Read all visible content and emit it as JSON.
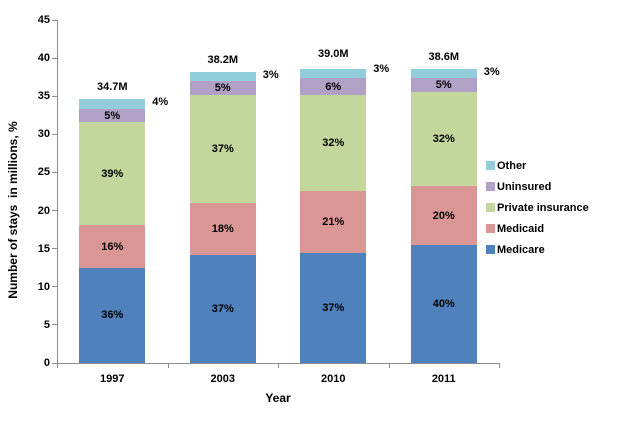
{
  "chart_data": {
    "type": "stacked-bar",
    "title": "",
    "xlabel": "Year",
    "ylabel": "Number of stays  in millions, %",
    "categories": [
      "1997",
      "2003",
      "2010",
      "2011"
    ],
    "totals_labels": [
      "34.7M",
      "38.2M",
      "39.0M",
      "38.6M"
    ],
    "totals_values": [
      34.7,
      38.2,
      39.0,
      38.6
    ],
    "ylim": [
      0,
      45
    ],
    "ytick_labels": [
      "0",
      "5",
      "10",
      "15",
      "20",
      "25",
      "30",
      "35",
      "40",
      "45"
    ],
    "ytick_values": [
      0,
      5,
      10,
      15,
      20,
      25,
      30,
      35,
      40,
      45
    ],
    "grid": false,
    "legend_position": "right",
    "axis_color": "#8c8c8c",
    "series": [
      {
        "name": "Medicare",
        "color": "#4f81bd",
        "percents": [
          36,
          37,
          37,
          40
        ],
        "labels": [
          "36%",
          "37%",
          "37%",
          "40%"
        ],
        "label_outside": false
      },
      {
        "name": "Medicaid",
        "color": "#d99694",
        "percents": [
          16,
          18,
          21,
          20
        ],
        "labels": [
          "16%",
          "18%",
          "21%",
          "20%"
        ],
        "label_outside": false
      },
      {
        "name": "Private insurance",
        "color": "#c3d69b",
        "percents": [
          39,
          37,
          32,
          32
        ],
        "labels": [
          "39%",
          "37%",
          "32%",
          "32%"
        ],
        "label_outside": false
      },
      {
        "name": "Uninsured",
        "color": "#b2a1c7",
        "percents": [
          5,
          5,
          6,
          5
        ],
        "labels": [
          "5%",
          "5%",
          "6%",
          "5%"
        ],
        "label_outside": false
      },
      {
        "name": "Other",
        "color": "#92cddc",
        "percents": [
          4,
          3,
          3,
          3
        ],
        "labels": [
          "4%",
          "3%",
          "3%",
          "3%"
        ],
        "label_outside": true
      }
    ],
    "legend": [
      {
        "name": "Other",
        "color": "#92cddc"
      },
      {
        "name": "Uninsured",
        "color": "#b2a1c7"
      },
      {
        "name": "Private insurance",
        "color": "#c3d69b"
      },
      {
        "name": "Medicaid",
        "color": "#d99694"
      },
      {
        "name": "Medicare",
        "color": "#4f81bd"
      }
    ]
  }
}
